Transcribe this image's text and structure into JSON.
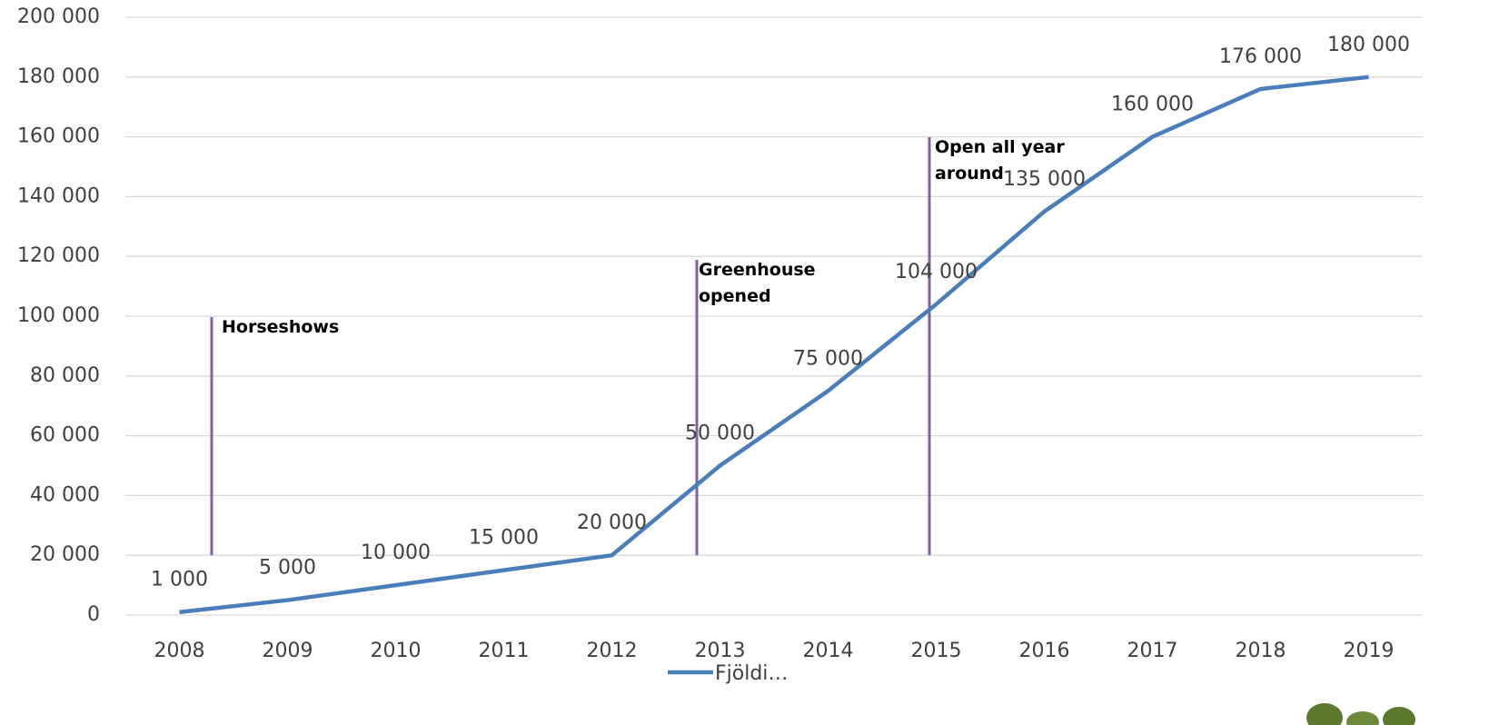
{
  "chart_data": {
    "type": "line",
    "categories": [
      "2008",
      "2009",
      "2010",
      "2011",
      "2012",
      "2013",
      "2014",
      "2015",
      "2016",
      "2017",
      "2018",
      "2019"
    ],
    "series": [
      {
        "name": "Fjöldi…",
        "color": "#4a7ebb",
        "values": [
          1000,
          5000,
          10000,
          15000,
          20000,
          50000,
          75000,
          104000,
          135000,
          160000,
          176000,
          180000
        ],
        "value_labels": [
          "1 000",
          "5 000",
          "10 000",
          "15 000",
          "20 000",
          "50 000",
          "75 000",
          "104 000",
          "135 000",
          "160 000",
          "176 000",
          "180 000"
        ]
      }
    ],
    "ylim": [
      0,
      200000
    ],
    "yticks": [
      0,
      {
        "value": 20000,
        "label": "20 000"
      },
      {
        "value": 40000,
        "label": "40 000"
      },
      {
        "value": 60000,
        "label": "60 000"
      },
      {
        "value": 80000,
        "label": "80 000"
      },
      {
        "value": 100000,
        "label": "100 000"
      },
      {
        "value": 120000,
        "label": "120 000"
      },
      {
        "value": 140000,
        "label": "140 000"
      },
      {
        "value": 160000,
        "label": "160 000"
      },
      {
        "value": 180000,
        "label": "180 000"
      },
      {
        "value": 200000,
        "label": "200 000"
      }
    ],
    "grid": true,
    "legend": "bottom",
    "annotations": [
      "Horseshows",
      "Greenhouse opened",
      "Open all year around"
    ],
    "annotation_color": "#8064a2"
  }
}
